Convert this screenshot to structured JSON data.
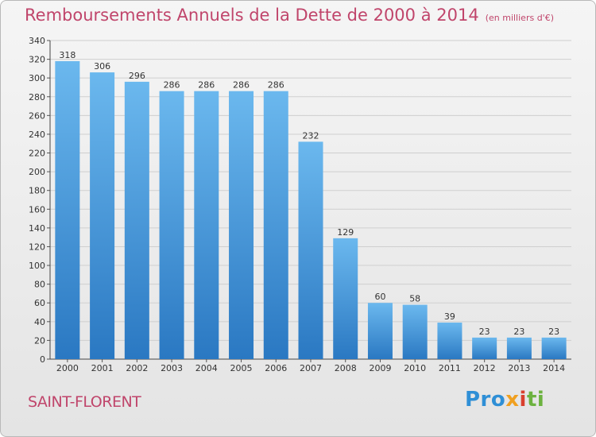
{
  "title": "Remboursements Annuels de la Dette de 2000 à 2014",
  "unit": "(en milliers d'€)",
  "commune": "SAINT-FLORENT",
  "brand": {
    "part1": "Pro",
    "part2": "x",
    "part3": "i",
    "part4": "ti"
  },
  "colors": {
    "bar_top": "#6bb8ee",
    "bar_bottom": "#2a78c2",
    "title": "#c0456b"
  },
  "chart_data": {
    "type": "bar",
    "categories": [
      "2000",
      "2001",
      "2002",
      "2003",
      "2004",
      "2005",
      "2006",
      "2007",
      "2008",
      "2009",
      "2010",
      "2011",
      "2012",
      "2013",
      "2014"
    ],
    "values": [
      318,
      306,
      296,
      286,
      286,
      286,
      286,
      232,
      129,
      60,
      58,
      39,
      23,
      23,
      23
    ],
    "ylim": [
      0,
      340
    ],
    "ytick_step": 20,
    "grid": true
  }
}
